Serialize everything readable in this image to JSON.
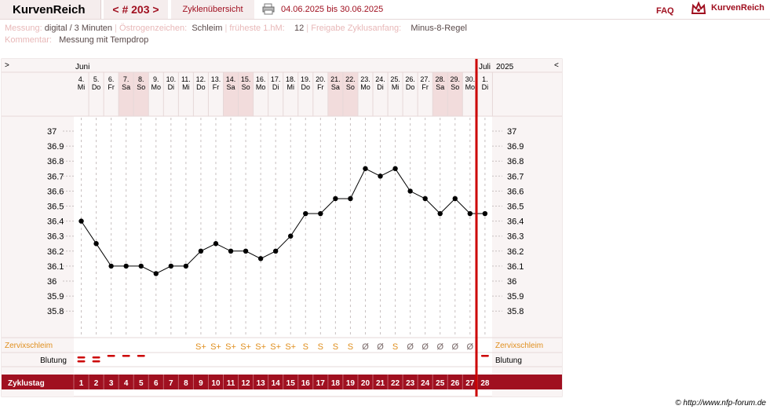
{
  "header": {
    "brand": "KurvenReich",
    "cycle_nav": "< # 203 >",
    "overview": "Zyklenübersicht",
    "date_range": "04.06.2025 bis 30.06.2025",
    "faq": "FAQ",
    "logo_text": "KurvenReich"
  },
  "info": {
    "measure_label": "Messung:",
    "measure_value": "digital / 3 Minuten",
    "estrogen_label": "Östrogenzeichen:",
    "estrogen_value": "Schleim",
    "earliest_label": "früheste 1.hM:",
    "earliest_value": "12",
    "release_label": "Freigabe Zyklusanfang:",
    "release_value": "Minus-8-Regel",
    "comment_label": "Kommentar:",
    "comment_value": "Messung mit Tempdrop"
  },
  "chart_header": {
    "prev": ">",
    "next": "<",
    "month_june": "Juni",
    "month_july": "Juli",
    "year": "2025"
  },
  "chart_data": {
    "type": "line",
    "ylim": [
      35.7,
      37.05
    ],
    "y_ticks": [
      "37",
      "36.9",
      "36.8",
      "36.7",
      "36.6",
      "36.5",
      "36.4",
      "36.3",
      "36.2",
      "36.1",
      "36",
      "35.9",
      "35.8"
    ],
    "days": [
      {
        "d": "4.",
        "w": "Mi",
        "we": false
      },
      {
        "d": "5.",
        "w": "Do",
        "we": false
      },
      {
        "d": "6.",
        "w": "Fr",
        "we": false
      },
      {
        "d": "7.",
        "w": "Sa",
        "we": true
      },
      {
        "d": "8.",
        "w": "So",
        "we": true
      },
      {
        "d": "9.",
        "w": "Mo",
        "we": false
      },
      {
        "d": "10.",
        "w": "Di",
        "we": false
      },
      {
        "d": "11.",
        "w": "Mi",
        "we": false
      },
      {
        "d": "12.",
        "w": "Do",
        "we": false
      },
      {
        "d": "13.",
        "w": "Fr",
        "we": false
      },
      {
        "d": "14.",
        "w": "Sa",
        "we": true
      },
      {
        "d": "15.",
        "w": "So",
        "we": true
      },
      {
        "d": "16.",
        "w": "Mo",
        "we": false
      },
      {
        "d": "17.",
        "w": "Di",
        "we": false
      },
      {
        "d": "18.",
        "w": "Mi",
        "we": false
      },
      {
        "d": "19.",
        "w": "Do",
        "we": false
      },
      {
        "d": "20.",
        "w": "Fr",
        "we": false
      },
      {
        "d": "21.",
        "w": "Sa",
        "we": true
      },
      {
        "d": "22.",
        "w": "So",
        "we": true
      },
      {
        "d": "23.",
        "w": "Mo",
        "we": false
      },
      {
        "d": "24.",
        "w": "Di",
        "we": false
      },
      {
        "d": "25.",
        "w": "Mi",
        "we": false
      },
      {
        "d": "26.",
        "w": "Do",
        "we": false
      },
      {
        "d": "27.",
        "w": "Fr",
        "we": false
      },
      {
        "d": "28.",
        "w": "Sa",
        "we": true
      },
      {
        "d": "29.",
        "w": "So",
        "we": true
      },
      {
        "d": "30.",
        "w": "Mo",
        "we": false
      },
      {
        "d": "1.",
        "w": "Di",
        "we": false
      }
    ],
    "temps": [
      36.4,
      36.25,
      36.1,
      36.1,
      36.1,
      36.05,
      36.1,
      36.1,
      36.2,
      36.25,
      36.2,
      36.2,
      36.15,
      36.2,
      36.3,
      36.45,
      36.45,
      36.55,
      36.55,
      36.75,
      36.7,
      36.75,
      36.6,
      36.55,
      36.45,
      36.55,
      36.45,
      36.45
    ],
    "mucus": [
      "",
      "",
      "",
      "",
      "",
      "",
      "",
      "",
      "S+",
      "S+",
      "S+",
      "S+",
      "S+",
      "S+",
      "S+",
      "S",
      "S",
      "S",
      "S",
      "Ø",
      "Ø",
      "S",
      "Ø",
      "Ø",
      "Ø",
      "Ø",
      "Ø",
      ""
    ],
    "bleeding": [
      2,
      2,
      1,
      1,
      1,
      0,
      0,
      0,
      0,
      0,
      0,
      0,
      0,
      0,
      0,
      0,
      0,
      0,
      0,
      0,
      0,
      0,
      0,
      0,
      0,
      0,
      0,
      1
    ],
    "cycle_days": [
      "1",
      "2",
      "3",
      "4",
      "5",
      "6",
      "7",
      "8",
      "9",
      "10",
      "11",
      "12",
      "13",
      "14",
      "15",
      "16",
      "17",
      "18",
      "19",
      "20",
      "21",
      "22",
      "23",
      "24",
      "25",
      "26",
      "27",
      "28"
    ],
    "row_labels": {
      "mucus": "Zervixschleim",
      "bleeding": "Blutung",
      "cycle": "Zyklustag"
    },
    "marker_after_day": 27
  },
  "footer": {
    "copyright": "© http://www.nfp-forum.de"
  },
  "colors": {
    "accent": "#a01020",
    "weekend": "#f2dcdc",
    "panel": "#f9f4f4",
    "mucus": "#e09020",
    "dry": "#7a6a6a",
    "cycle_bar": "#a01020",
    "marker": "#cc0000"
  }
}
